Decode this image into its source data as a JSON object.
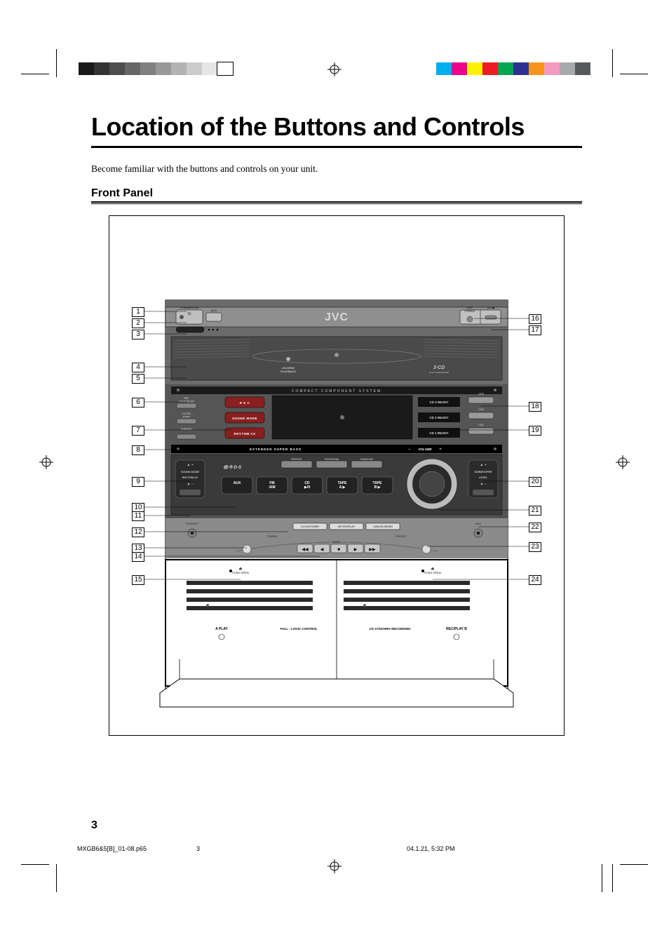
{
  "title": "Location of the Buttons and Controls",
  "intro": "Become familiar with the buttons and controls on your unit.",
  "subhead": "Front Panel",
  "page_number": "3",
  "footer": {
    "file": "MXGB6&5[B]_01-08.p65",
    "sheet": "3",
    "stamp": "04.1.21, 5:32 PM"
  },
  "callouts_left": [
    "1",
    "2",
    "3",
    "4",
    "5",
    "6",
    "7",
    "8",
    "9",
    "10",
    "11",
    "12",
    "13",
    "14",
    "15"
  ],
  "callouts_right": [
    "16",
    "17",
    "18",
    "19",
    "20",
    "21",
    "22",
    "23",
    "24"
  ],
  "callout_left_y": [
    136,
    152,
    168,
    215,
    231,
    265,
    305,
    333,
    378,
    415,
    427,
    450,
    473,
    485,
    518
  ],
  "callout_right_y": [
    146,
    162,
    271,
    305,
    378,
    419,
    443,
    471,
    518
  ],
  "device": {
    "brand": "JVC",
    "top_labels": {
      "standby": "STANDBY/ON",
      "eco": "ECO",
      "disc_change": "DISC\nCHANGE",
      "cd_open": "CD"
    },
    "strip_labels": {
      "cd_rw": "CD-R/RW\nPLAYBACK",
      "three_cd": "3·CD",
      "three_cd_sub": "PLAY & EXCHANGE"
    },
    "mid_strip": "COMPACT   COMPONENT   SYSTEM",
    "left_col_buttons": [
      "REC\nSTART/STOP",
      "CD REC\nSTART",
      "DUBBING"
    ],
    "red_buttons": [
      "R E C",
      "SOUND MODE",
      "RHYTHM AX"
    ],
    "cd_ready": [
      "CD 3 READY",
      "CD 2 READY",
      "CD 1 READY"
    ],
    "cd_slots": [
      "CD3",
      "CD2",
      "CD1"
    ],
    "black_bar": "EXTENDED SUPER BASS",
    "rds": "R·D·S",
    "small_buttons": [
      "REPEAT",
      "PROGRAM",
      "RANDOM"
    ],
    "left_rocker": {
      "top": "SOUND MODE",
      "mid": "RHYTHM AX"
    },
    "right_rocker": {
      "top": "SUBWOOFER",
      "mid": "LEVEL"
    },
    "source_buttons": [
      "AUX",
      "FM\n/AM",
      "CD\n▶/II",
      "TAPE\nA ▶",
      "TAPE\nB ▶"
    ],
    "volume_label": "VOLUME",
    "jacks": {
      "phones": "PHONES",
      "aux": "AUX"
    },
    "center_buttons": [
      "CLOCK/TIMER",
      "SET/DISPLAY",
      "CANCEL/DEMO"
    ],
    "tuning": {
      "left": "TUNING",
      "right": "PRESET",
      "sleep": "SLEEP"
    },
    "deck_open": "PUSH OPEN",
    "deck_labels": {
      "a": "A PLAY",
      "logic": "FULL - LOGIC  CONTROL",
      "sync": "CD SYNCHRO RECORDING",
      "b": "REC/PLAY B"
    }
  },
  "colors": {
    "grey_bar": [
      "#1a1a1a",
      "#333333",
      "#4d4d4d",
      "#666666",
      "#808080",
      "#999999",
      "#b3b3b3",
      "#cccccc",
      "#e6e6e6",
      "#ffffff"
    ],
    "color_bar": [
      "#00aeef",
      "#ec008c",
      "#fff200",
      "#ed1c24",
      "#00a651",
      "#2e3192",
      "#f7941d",
      "#f49ac1",
      "#a7a9ac",
      "#58595b"
    ],
    "device_body_top": "#6b6b6b",
    "device_body_mid": "#555555",
    "device_body_low": "#8a8a8a",
    "red_btn": "#8a1f1f",
    "black": "#000000",
    "dark_strip": "#222222",
    "ctrl_face": "#3a3a3a",
    "ctrl_edge": "#9a9a9a"
  }
}
